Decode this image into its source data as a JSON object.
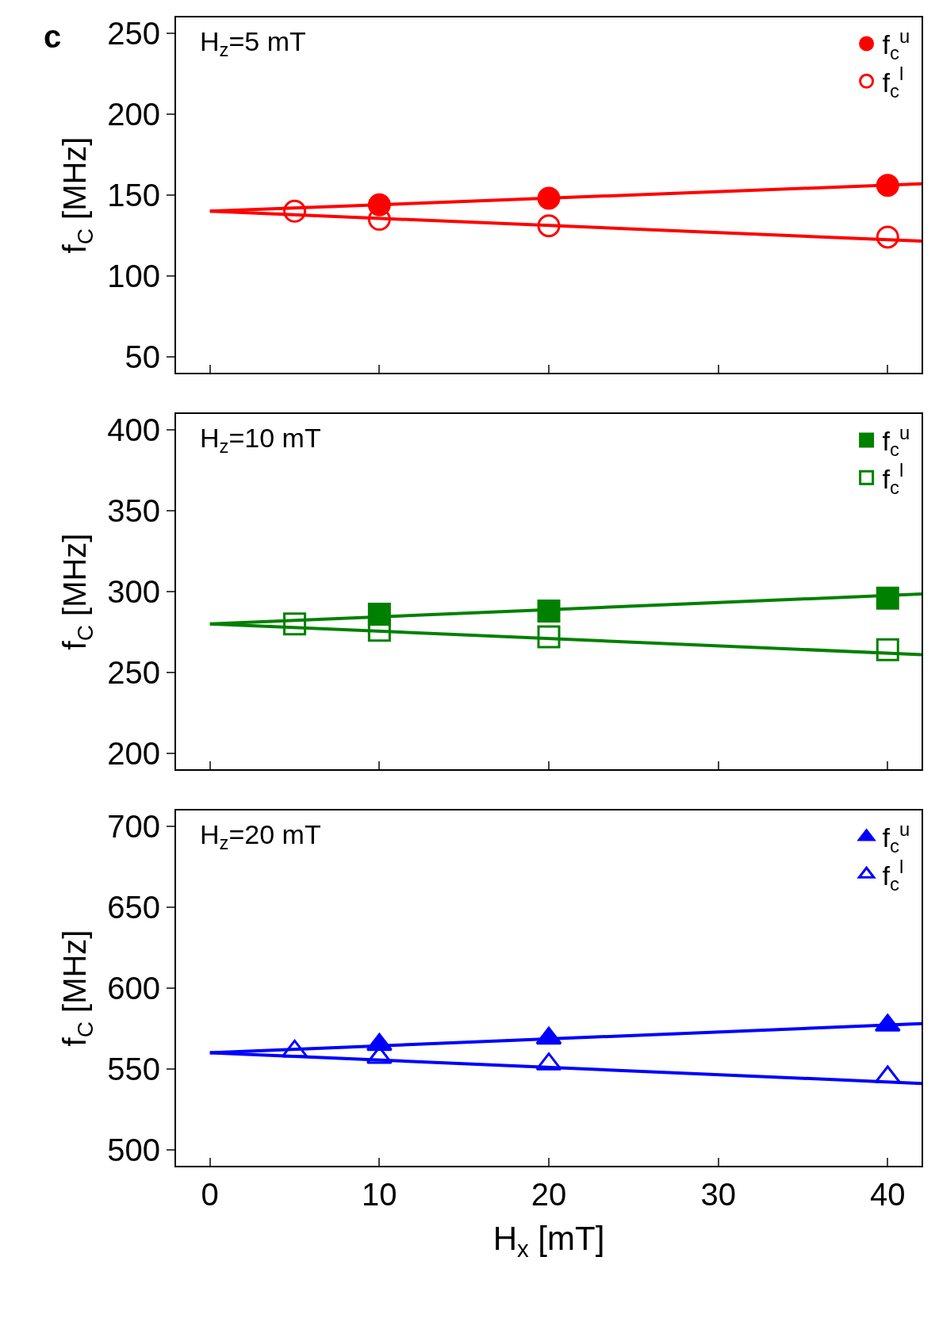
{
  "chart_data": [
    {
      "type": "scatter",
      "ylabel": "f$_{C}$ [MHz]",
      "annotations": [
        "c",
        "H$_{z}$=5 mT"
      ],
      "xlim": [
        -2,
        42
      ],
      "xticks": [
        0,
        10,
        20,
        30,
        40
      ],
      "ylim": [
        40,
        260
      ],
      "yticks": [
        50,
        100,
        150,
        200,
        250
      ],
      "tick_labels": "y",
      "grid": false,
      "legend": "top right",
      "series": [
        {
          "name": "f$_{c}$$^{u}$",
          "color": "#ff0000",
          "marker": "circle",
          "x": [
            10,
            20,
            40
          ],
          "values": [
            144,
            148,
            156
          ]
        },
        {
          "name": "f$_{c}$$^{l}$",
          "color": "#ff0000",
          "marker": "circle-open",
          "x": [
            5,
            10,
            20,
            40
          ],
          "values": [
            140,
            135,
            131,
            124
          ]
        },
        {
          "type": "line",
          "color": "#ff0000",
          "marker": "none",
          "x": [
            0,
            42
          ],
          "values": [
            140,
            157
          ]
        },
        {
          "type": "line",
          "color": "#ff0000",
          "marker": "none",
          "x": [
            0,
            42
          ],
          "values": [
            140,
            121.5
          ]
        }
      ]
    },
    {
      "type": "scatter",
      "ylabel": "f$_{C}$ [MHz]",
      "annotations": [
        "H$_{z}$=10 mT"
      ],
      "xlim": [
        -2,
        42
      ],
      "xticks": [
        0,
        10,
        20,
        30,
        40
      ],
      "ylim": [
        190,
        410
      ],
      "yticks": [
        200,
        250,
        300,
        350,
        400
      ],
      "tick_labels": "y",
      "grid": false,
      "legend": "top right",
      "series": [
        {
          "name": "f$_{c}$$^{u}$",
          "color": "#008000",
          "marker": "square",
          "x": [
            10,
            20,
            40
          ],
          "values": [
            286,
            288,
            296
          ]
        },
        {
          "name": "f$_{c}$$^{l}$",
          "color": "#008000",
          "marker": "square-open",
          "x": [
            5,
            10,
            20,
            40
          ],
          "values": [
            280,
            276,
            272,
            264
          ]
        },
        {
          "type": "line",
          "color": "#008000",
          "marker": "none",
          "x": [
            0,
            42
          ],
          "values": [
            280,
            298.5
          ]
        },
        {
          "type": "line",
          "color": "#008000",
          "marker": "none",
          "x": [
            0,
            42
          ],
          "values": [
            280,
            261
          ]
        }
      ]
    },
    {
      "type": "scatter",
      "xlabel": "H$_{x}$ [mT]",
      "ylabel": "f$_{C}$ [MHz]",
      "annotations": [
        "H$_{z}$=20 mT"
      ],
      "xlim": [
        -2,
        42
      ],
      "xticks": [
        0,
        10,
        20,
        30,
        40
      ],
      "ylim": [
        490,
        710
      ],
      "yticks": [
        500,
        550,
        600,
        650,
        700
      ],
      "grid": false,
      "legend": "top right",
      "series": [
        {
          "name": "f$_{c}$$^{u}$",
          "color": "#0000ff",
          "marker": "triangle-up",
          "x": [
            10,
            20,
            40
          ],
          "values": [
            565,
            569,
            577
          ]
        },
        {
          "name": "f$_{c}$$^{l}$",
          "color": "#0000ff",
          "marker": "triangle-up-open",
          "x": [
            5,
            10,
            20,
            40
          ],
          "values": [
            561,
            557,
            553,
            545
          ]
        },
        {
          "type": "line",
          "color": "#0000ff",
          "marker": "none",
          "x": [
            0,
            42
          ],
          "values": [
            560,
            578
          ]
        },
        {
          "type": "line",
          "color": "#0000ff",
          "marker": "none",
          "x": [
            0,
            42
          ],
          "values": [
            560,
            541
          ]
        }
      ]
    }
  ]
}
